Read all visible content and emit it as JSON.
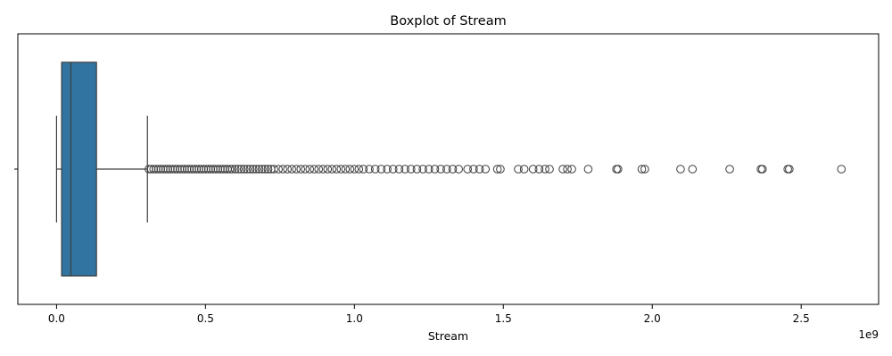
{
  "chart_data": {
    "type": "boxplot",
    "title": "Boxplot of Stream",
    "xlabel": "Stream",
    "ylabel": "",
    "x_offset_label": "1e9",
    "x_scale_factor": 1000000000,
    "xlim": [
      -0.13,
      2.76
    ],
    "x_ticks": [
      0.0,
      0.5,
      1.0,
      1.5,
      2.0,
      2.5
    ],
    "x_tick_labels": [
      "0.0",
      "0.5",
      "1.0",
      "1.5",
      "2.0",
      "2.5"
    ],
    "orientation": "horizontal",
    "grid": false,
    "legend": false,
    "box": {
      "whisker_low": 0.0,
      "q1": 0.017,
      "median": 0.048,
      "q3": 0.134,
      "whisker_high": 0.305,
      "color": "#3274a1"
    },
    "outliers": [
      0.31,
      0.318,
      0.326,
      0.334,
      0.342,
      0.35,
      0.358,
      0.366,
      0.374,
      0.382,
      0.39,
      0.398,
      0.406,
      0.414,
      0.422,
      0.43,
      0.438,
      0.446,
      0.454,
      0.462,
      0.47,
      0.478,
      0.486,
      0.494,
      0.502,
      0.51,
      0.518,
      0.526,
      0.534,
      0.542,
      0.55,
      0.558,
      0.566,
      0.574,
      0.582,
      0.59,
      0.6,
      0.61,
      0.62,
      0.63,
      0.64,
      0.65,
      0.66,
      0.67,
      0.68,
      0.69,
      0.7,
      0.71,
      0.72,
      0.73,
      0.745,
      0.76,
      0.775,
      0.79,
      0.805,
      0.82,
      0.835,
      0.85,
      0.865,
      0.88,
      0.895,
      0.91,
      0.925,
      0.94,
      0.955,
      0.97,
      0.985,
      1.0,
      1.015,
      1.03,
      1.05,
      1.07,
      1.09,
      1.11,
      1.13,
      1.15,
      1.17,
      1.19,
      1.21,
      1.23,
      1.25,
      1.27,
      1.29,
      1.31,
      1.33,
      1.35,
      1.38,
      1.4,
      1.42,
      1.44,
      1.48,
      1.49,
      1.55,
      1.57,
      1.6,
      1.62,
      1.64,
      1.655,
      1.7,
      1.715,
      1.73,
      1.785,
      1.88,
      1.885,
      1.965,
      1.975,
      2.095,
      2.135,
      2.26,
      2.365,
      2.37,
      2.455,
      2.46,
      2.635
    ]
  }
}
